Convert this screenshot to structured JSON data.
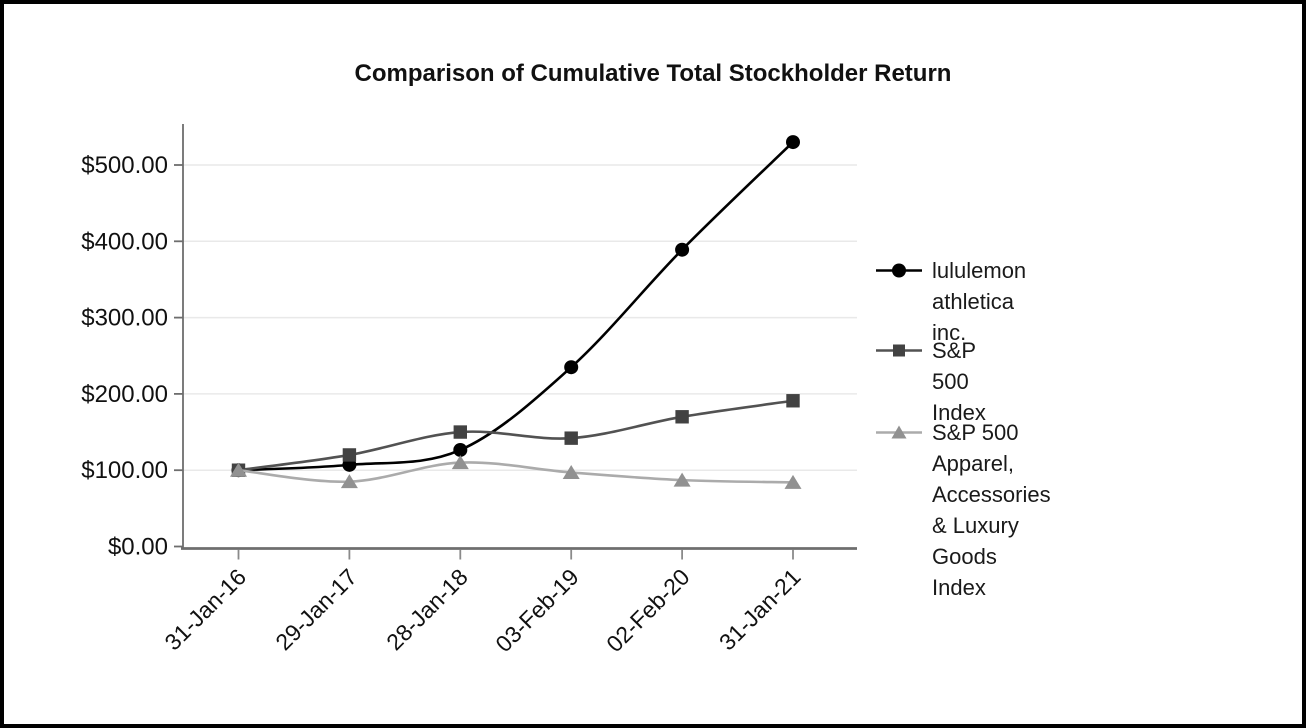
{
  "page": {
    "background": "#ffffff",
    "border_color": "#000000"
  },
  "chart_data": {
    "type": "line",
    "title": "Comparison of Cumulative Total Stockholder Return",
    "categories": [
      "31-Jan-16",
      "29-Jan-17",
      "28-Jan-18",
      "03-Feb-19",
      "02-Feb-20",
      "31-Jan-21"
    ],
    "series": [
      {
        "name": "lululemon athletica inc.",
        "marker": "circle",
        "line_color": "#000000",
        "marker_color": "#000000",
        "values": [
          100.0,
          107.0,
          126.5,
          235.0,
          389.0,
          530.0
        ]
      },
      {
        "name": "S&P 500 Index",
        "marker": "square",
        "line_color": "#525252",
        "marker_color": "#424242",
        "values": [
          100.0,
          120.0,
          150.0,
          142.0,
          170.0,
          191.0
        ]
      },
      {
        "name": "S&P 500 Apparel, Accessories & Luxury Goods Index",
        "marker": "triangle",
        "line_color": "#ababab",
        "marker_color": "#919191",
        "values": [
          100.0,
          85.0,
          110.0,
          97.0,
          87.0,
          84.0
        ]
      }
    ],
    "y_axis": {
      "tick_labels": [
        "$0.00",
        "$100.00",
        "$200.00",
        "$300.00",
        "$400.00",
        "$500.00"
      ],
      "min": 0,
      "max": 500,
      "tick_step": 100
    },
    "x_axis": {
      "tick_labels": [
        "31-Jan-16",
        "29-Jan-17",
        "28-Jan-18",
        "03-Feb-19",
        "02-Feb-20",
        "31-Jan-21"
      ],
      "label_rotation_deg": 45
    },
    "legend_position": "right",
    "grid": true,
    "smooth_lines": true,
    "colors": {
      "gridline": "#e9e9e9",
      "axis_line": "#6e6e6e",
      "tick_mark": "#8a8a8a",
      "tick_text": "#111111"
    }
  }
}
